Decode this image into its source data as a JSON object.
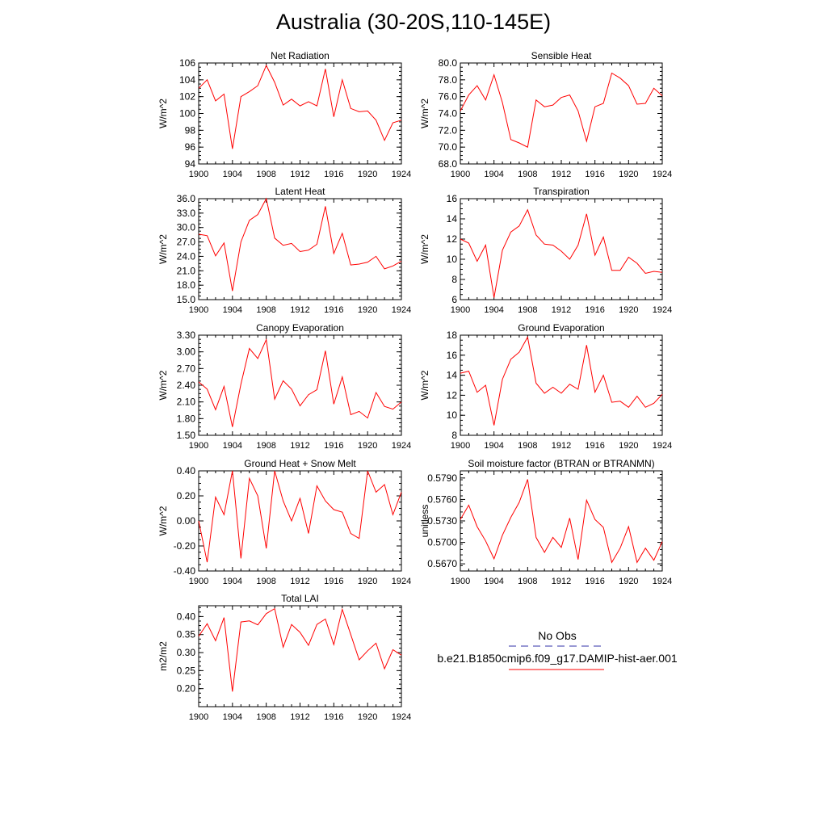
{
  "figure": {
    "title": "Australia (30-20S,110-145E)"
  },
  "legend": {
    "obs_label": "No Obs",
    "case_label": "b.e21.B1850cmip6.f09_g17.DAMIP-hist-aer.001",
    "obs_color": "#3333aa",
    "case_color": "#ff0000"
  },
  "chart_data": [
    {
      "type": "line",
      "title": "Net Radiation",
      "ylabel": "W/m^2",
      "x": [
        1900,
        1901,
        1902,
        1903,
        1904,
        1905,
        1906,
        1907,
        1908,
        1909,
        1910,
        1911,
        1912,
        1913,
        1914,
        1915,
        1916,
        1917,
        1918,
        1919,
        1920,
        1921,
        1922,
        1923,
        1924
      ],
      "ylim": [
        94,
        106
      ],
      "yticks": [
        94,
        96,
        98,
        100,
        102,
        104,
        106
      ],
      "yticklabels": [
        "94",
        "96",
        "98",
        "100",
        "102",
        "104",
        "106"
      ],
      "xticks": [
        1900,
        1904,
        1908,
        1912,
        1916,
        1920,
        1924
      ],
      "series": [
        {
          "values": [
            103.0,
            104.0,
            101.5,
            102.3,
            95.8,
            102.0,
            102.6,
            103.3,
            105.7,
            103.7,
            101.0,
            101.7,
            100.9,
            101.4,
            100.9,
            105.3,
            99.6,
            104.0,
            100.6,
            100.2,
            100.3,
            99.2,
            96.8,
            98.9,
            99.2
          ],
          "color": "#ff0000"
        }
      ]
    },
    {
      "type": "line",
      "title": "Sensible Heat",
      "ylabel": "W/m^2",
      "x": [
        1900,
        1901,
        1902,
        1903,
        1904,
        1905,
        1906,
        1907,
        1908,
        1909,
        1910,
        1911,
        1912,
        1913,
        1914,
        1915,
        1916,
        1917,
        1918,
        1919,
        1920,
        1921,
        1922,
        1923,
        1924
      ],
      "ylim": [
        68,
        80
      ],
      "yticks": [
        68,
        70,
        72,
        74,
        76,
        78,
        80
      ],
      "yticklabels": [
        "68.0",
        "70.0",
        "72.0",
        "74.0",
        "76.0",
        "78.0",
        "80.0"
      ],
      "xticks": [
        1900,
        1904,
        1908,
        1912,
        1916,
        1920,
        1924
      ],
      "series": [
        {
          "values": [
            74.3,
            76.2,
            77.3,
            75.6,
            78.6,
            75.3,
            70.9,
            70.5,
            70.0,
            75.6,
            74.8,
            75.0,
            75.9,
            76.2,
            74.3,
            70.7,
            74.8,
            75.2,
            78.8,
            78.2,
            77.3,
            75.1,
            75.2,
            77.0,
            76.1
          ],
          "color": "#ff0000"
        }
      ]
    },
    {
      "type": "line",
      "title": "Latent Heat",
      "ylabel": "W/m^2",
      "x": [
        1900,
        1901,
        1902,
        1903,
        1904,
        1905,
        1906,
        1907,
        1908,
        1909,
        1910,
        1911,
        1912,
        1913,
        1914,
        1915,
        1916,
        1917,
        1918,
        1919,
        1920,
        1921,
        1922,
        1923,
        1924
      ],
      "ylim": [
        15,
        36
      ],
      "yticks": [
        15,
        18,
        21,
        24,
        27,
        30,
        33,
        36
      ],
      "yticklabels": [
        "15.0",
        "18.0",
        "21.0",
        "24.0",
        "27.0",
        "30.0",
        "33.0",
        "36.0"
      ],
      "xticks": [
        1900,
        1904,
        1908,
        1912,
        1916,
        1920,
        1924
      ],
      "series": [
        {
          "values": [
            28.6,
            28.3,
            24.1,
            26.8,
            16.8,
            27.0,
            31.5,
            32.7,
            36.0,
            27.8,
            26.3,
            26.7,
            25.0,
            25.3,
            26.5,
            34.4,
            24.6,
            28.8,
            22.2,
            22.4,
            22.8,
            24.0,
            21.4,
            22.0,
            23.0
          ],
          "color": "#ff0000"
        }
      ]
    },
    {
      "type": "line",
      "title": "Transpiration",
      "ylabel": "W/m^2",
      "x": [
        1900,
        1901,
        1902,
        1903,
        1904,
        1905,
        1906,
        1907,
        1908,
        1909,
        1910,
        1911,
        1912,
        1913,
        1914,
        1915,
        1916,
        1917,
        1918,
        1919,
        1920,
        1921,
        1922,
        1923,
        1924
      ],
      "ylim": [
        6,
        16
      ],
      "yticks": [
        6,
        8,
        10,
        12,
        14,
        16
      ],
      "yticklabels": [
        "6",
        "8",
        "10",
        "12",
        "14",
        "16"
      ],
      "xticks": [
        1900,
        1904,
        1908,
        1912,
        1916,
        1920,
        1924
      ],
      "series": [
        {
          "values": [
            12.0,
            11.6,
            9.8,
            11.4,
            6.2,
            10.9,
            12.7,
            13.3,
            14.9,
            12.4,
            11.5,
            11.4,
            10.8,
            10.0,
            11.4,
            14.5,
            10.4,
            12.2,
            8.9,
            8.9,
            10.2,
            9.6,
            8.6,
            8.8,
            8.7
          ],
          "color": "#ff0000"
        }
      ]
    },
    {
      "type": "line",
      "title": "Canopy Evaporation",
      "ylabel": "W/m^2",
      "x": [
        1900,
        1901,
        1902,
        1903,
        1904,
        1905,
        1906,
        1907,
        1908,
        1909,
        1910,
        1911,
        1912,
        1913,
        1914,
        1915,
        1916,
        1917,
        1918,
        1919,
        1920,
        1921,
        1922,
        1923,
        1924
      ],
      "ylim": [
        1.5,
        3.3
      ],
      "yticks": [
        1.5,
        1.8,
        2.1,
        2.4,
        2.7,
        3.0,
        3.3
      ],
      "yticklabels": [
        "1.50",
        "1.80",
        "2.10",
        "2.40",
        "2.70",
        "3.00",
        "3.30"
      ],
      "xticks": [
        1900,
        1904,
        1908,
        1912,
        1916,
        1920,
        1924
      ],
      "series": [
        {
          "values": [
            2.46,
            2.33,
            1.96,
            2.38,
            1.65,
            2.42,
            3.06,
            2.88,
            3.22,
            2.15,
            2.48,
            2.33,
            2.03,
            2.23,
            2.32,
            3.02,
            2.06,
            2.55,
            1.87,
            1.93,
            1.81,
            2.27,
            2.02,
            1.97,
            2.1
          ],
          "color": "#ff0000"
        }
      ]
    },
    {
      "type": "line",
      "title": "Ground Evaporation",
      "ylabel": "W/m^2",
      "x": [
        1900,
        1901,
        1902,
        1903,
        1904,
        1905,
        1906,
        1907,
        1908,
        1909,
        1910,
        1911,
        1912,
        1913,
        1914,
        1915,
        1916,
        1917,
        1918,
        1919,
        1920,
        1921,
        1922,
        1923,
        1924
      ],
      "ylim": [
        8,
        18
      ],
      "yticks": [
        8,
        10,
        12,
        14,
        16,
        18
      ],
      "yticklabels": [
        "8",
        "10",
        "12",
        "14",
        "16",
        "18"
      ],
      "xticks": [
        1900,
        1904,
        1908,
        1912,
        1916,
        1920,
        1924
      ],
      "series": [
        {
          "values": [
            14.2,
            14.4,
            12.3,
            13.0,
            9.0,
            13.6,
            15.6,
            16.3,
            17.8,
            13.2,
            12.2,
            12.8,
            12.2,
            13.1,
            12.6,
            17.0,
            12.3,
            14.0,
            11.3,
            11.4,
            10.8,
            11.9,
            10.8,
            11.2,
            12.1
          ],
          "color": "#ff0000"
        }
      ]
    },
    {
      "type": "line",
      "title": "Ground Heat + Snow Melt",
      "ylabel": "W/m^2",
      "x": [
        1900,
        1901,
        1902,
        1903,
        1904,
        1905,
        1906,
        1907,
        1908,
        1909,
        1910,
        1911,
        1912,
        1913,
        1914,
        1915,
        1916,
        1917,
        1918,
        1919,
        1920,
        1921,
        1922,
        1923,
        1924
      ],
      "ylim": [
        -0.4,
        0.4
      ],
      "yticks": [
        -0.4,
        -0.2,
        0.0,
        0.2,
        0.4
      ],
      "yticklabels": [
        "-0.40",
        "-0.20",
        "0.00",
        "0.20",
        "0.40"
      ],
      "xticks": [
        1900,
        1904,
        1908,
        1912,
        1916,
        1920,
        1924
      ],
      "series": [
        {
          "values": [
            0.0,
            -0.33,
            0.19,
            0.05,
            0.4,
            -0.3,
            0.34,
            0.2,
            -0.22,
            0.4,
            0.16,
            0.0,
            0.18,
            -0.1,
            0.28,
            0.16,
            0.09,
            0.07,
            -0.1,
            -0.14,
            0.4,
            0.23,
            0.29,
            0.05,
            0.23
          ],
          "color": "#ff0000"
        }
      ]
    },
    {
      "type": "line",
      "title": "Soil moisture factor (BTRAN or BTRANMN)",
      "ylabel": "unitless",
      "x": [
        1900,
        1901,
        1902,
        1903,
        1904,
        1905,
        1906,
        1907,
        1908,
        1909,
        1910,
        1911,
        1912,
        1913,
        1914,
        1915,
        1916,
        1917,
        1918,
        1919,
        1920,
        1921,
        1922,
        1923,
        1924
      ],
      "ylim": [
        0.566,
        0.58
      ],
      "yticks": [
        0.567,
        0.57,
        0.573,
        0.576,
        0.579
      ],
      "yticklabels": [
        "0.5670",
        "0.5700",
        "0.5730",
        "0.5760",
        "0.5790"
      ],
      "xticks": [
        1900,
        1904,
        1908,
        1912,
        1916,
        1920,
        1924
      ],
      "series": [
        {
          "values": [
            0.5732,
            0.5752,
            0.5722,
            0.5702,
            0.5677,
            0.571,
            0.5735,
            0.5756,
            0.5788,
            0.5707,
            0.5686,
            0.5707,
            0.5693,
            0.5734,
            0.5676,
            0.5759,
            0.5732,
            0.5721,
            0.5672,
            0.5692,
            0.5722,
            0.5672,
            0.5692,
            0.5675,
            0.5701
          ],
          "color": "#ff0000"
        }
      ]
    },
    {
      "type": "line",
      "title": "Total LAI",
      "ylabel": "m2/m2",
      "x": [
        1900,
        1901,
        1902,
        1903,
        1904,
        1905,
        1906,
        1907,
        1908,
        1909,
        1910,
        1911,
        1912,
        1913,
        1914,
        1915,
        1916,
        1917,
        1918,
        1919,
        1920,
        1921,
        1922,
        1923,
        1924
      ],
      "ylim": [
        0.15,
        0.43
      ],
      "yticks": [
        0.2,
        0.25,
        0.3,
        0.35,
        0.4
      ],
      "yticklabels": [
        "0.20",
        "0.25",
        "0.30",
        "0.35",
        "0.40"
      ],
      "xticks": [
        1900,
        1904,
        1908,
        1912,
        1916,
        1920,
        1924
      ],
      "series": [
        {
          "values": [
            0.345,
            0.38,
            0.333,
            0.397,
            0.192,
            0.385,
            0.388,
            0.377,
            0.408,
            0.422,
            0.315,
            0.378,
            0.356,
            0.32,
            0.378,
            0.393,
            0.322,
            0.42,
            0.35,
            0.28,
            0.305,
            0.326,
            0.255,
            0.308,
            0.293
          ],
          "color": "#ff0000"
        }
      ]
    }
  ]
}
